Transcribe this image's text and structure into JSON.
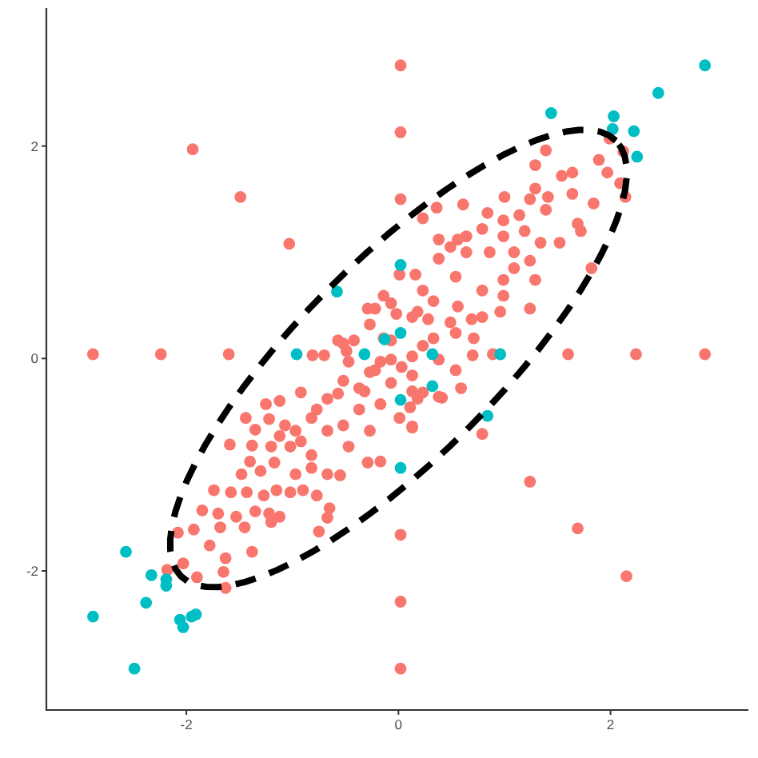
{
  "chart_data": {
    "type": "scatter",
    "xlim": [
      -3.32,
      3.3
    ],
    "ylim": [
      -3.31,
      3.3
    ],
    "xticks": [
      -2,
      0,
      2
    ],
    "yticks": [
      -2,
      0,
      2
    ],
    "marker": "circle",
    "series": [
      {
        "color": "#f8766d",
        "x": [
          0.02,
          0.02,
          0.02,
          -2.88,
          -2.24,
          -1.6,
          1.6,
          2.24,
          2.89,
          0.02,
          0.02,
          0.02,
          -1.94,
          -1.49,
          -1.03,
          1.24,
          1.69,
          2.15,
          -0.81,
          -0.7,
          -0.52,
          -0.42,
          -1.25,
          -1.12,
          -0.92,
          -0.67,
          -1.44,
          -1.22,
          -1.35,
          -1.59,
          -1.38,
          -1.12,
          -0.97,
          -0.82,
          -0.67,
          -0.52,
          -0.47,
          -0.27,
          -0.29,
          -0.17,
          -1.4,
          -1.48,
          -1.3,
          -1.17,
          -0.97,
          -0.82,
          -0.67,
          -0.55,
          -1.74,
          -1.58,
          -1.43,
          -1.27,
          -1.15,
          -1.02,
          -0.9,
          -0.77,
          -1.85,
          -1.7,
          -1.53,
          -1.35,
          -1.22,
          -1.12,
          -0.65,
          -0.67,
          -1.68,
          -1.45,
          -1.2,
          -0.75,
          -2.08,
          -1.93,
          -1.78,
          -1.63,
          -1.38,
          -2.03,
          -1.65,
          -1.9,
          0.13,
          0.01,
          -0.07,
          -0.27,
          -0.52,
          -0.17,
          -0.37,
          -0.22,
          -0.02,
          0.18,
          0.13,
          0.18,
          -0.27,
          -0.07,
          -0.17,
          -0.47,
          0.03,
          -0.37,
          -0.57,
          -0.77,
          -0.92,
          -0.82,
          -1.02,
          -1.07,
          -1.2,
          0.11,
          0.28,
          1.39,
          1.29,
          1.54,
          1.64,
          1.89,
          1.97,
          2.09,
          2.14,
          1.99,
          1.64,
          1.84,
          1.41,
          1.24,
          1.0,
          0.84,
          0.61,
          0.36,
          0.23,
          1.14,
          1.39,
          1.69,
          1.72,
          1.52,
          0.38,
          0.56,
          0.79,
          0.99,
          1.19,
          1.34,
          1.82,
          0.01,
          0.16,
          0.38,
          0.64,
          0.86,
          1.09,
          1.24,
          1.29,
          0.99,
          0.79,
          0.54,
          0.23,
          -0.14,
          1.24,
          0.96,
          0.79,
          0.56,
          0.33,
          0.13,
          -0.29,
          0.71,
          0.54,
          0.23,
          0.7,
          0.89,
          0.54,
          0.38,
          0.13,
          -0.22,
          -0.32,
          0.59,
          0.41,
          0.13,
          0.79,
          0.23,
          -0.14,
          -0.07,
          0.38,
          0.13,
          0.33,
          0.49,
          0.69,
          0.99,
          1.09,
          0.64,
          0.49,
          0.99,
          1.29,
          2.12,
          -0.07,
          -0.57,
          -0.49,
          -1.63,
          -2.18
        ],
        "values": [
          2.76,
          2.13,
          1.5,
          0.04,
          0.04,
          0.04,
          0.04,
          0.04,
          0.04,
          -1.66,
          -2.29,
          -2.92,
          1.97,
          1.52,
          1.08,
          -1.16,
          -1.6,
          -2.05,
          0.03,
          0.03,
          0.14,
          0.17,
          -0.43,
          -0.4,
          -0.32,
          -0.38,
          -0.56,
          -0.57,
          -0.67,
          -0.81,
          -0.82,
          -0.73,
          -0.68,
          -0.56,
          -0.68,
          -0.63,
          -0.83,
          -0.68,
          -0.98,
          -0.97,
          -0.97,
          -1.09,
          -1.06,
          -0.98,
          -1.09,
          -1.03,
          -1.09,
          -1.1,
          -1.24,
          -1.26,
          -1.26,
          -1.29,
          -1.24,
          -1.26,
          -1.24,
          -1.29,
          -1.43,
          -1.46,
          -1.49,
          -1.44,
          -1.46,
          -1.49,
          -1.41,
          -1.5,
          -1.59,
          -1.59,
          -1.54,
          -1.63,
          -1.64,
          -1.61,
          -1.76,
          -1.88,
          -1.82,
          -1.93,
          -2.01,
          -2.06,
          -0.64,
          -0.56,
          -0.23,
          -0.13,
          -0.21,
          -0.43,
          -0.48,
          0.47,
          0.42,
          0.44,
          0.02,
          -0.38,
          0.32,
          0.17,
          -0.03,
          -0.03,
          -0.08,
          -0.28,
          -0.33,
          -0.48,
          -0.78,
          -0.91,
          -0.83,
          -0.63,
          -0.83,
          -0.46,
          0.37,
          1.96,
          1.82,
          1.72,
          1.75,
          1.87,
          1.75,
          1.65,
          1.52,
          2.07,
          1.55,
          1.46,
          1.52,
          1.5,
          1.52,
          1.37,
          1.45,
          1.42,
          1.32,
          1.35,
          1.4,
          1.27,
          1.2,
          1.09,
          1.12,
          1.12,
          1.22,
          1.15,
          1.2,
          1.09,
          0.85,
          0.79,
          0.79,
          0.94,
          1.0,
          1.0,
          1.0,
          0.92,
          0.74,
          0.74,
          0.64,
          0.77,
          0.64,
          0.59,
          0.47,
          0.44,
          0.39,
          0.49,
          0.54,
          0.39,
          0.47,
          0.19,
          0.24,
          0.12,
          0.03,
          0.04,
          -0.11,
          -0.36,
          -0.31,
          -0.11,
          -0.31,
          -0.28,
          -0.37,
          -0.65,
          -0.71,
          -0.32,
          0.19,
          -0.01,
          -0.01,
          -0.16,
          0.19,
          0.34,
          0.37,
          0.59,
          0.85,
          1.15,
          1.05,
          1.3,
          1.6,
          1.95,
          0.52,
          0.17,
          0.07,
          -2.16,
          -1.99
        ]
      },
      {
        "color": "#00bfc4",
        "x": [
          2.89,
          2.45,
          1.44,
          2.03,
          2.02,
          2.22,
          2.25,
          0.02,
          0.02,
          0.32,
          0.96,
          -0.58,
          -0.96,
          -0.32,
          -0.13,
          0.32,
          0.02,
          0.84,
          0.02,
          -2.57,
          -2.33,
          -2.19,
          -2.19,
          -2.88,
          -2.38,
          -2.06,
          -2.03,
          -1.95,
          -1.91,
          -2.49
        ],
        "values": [
          2.76,
          2.5,
          2.31,
          2.28,
          2.16,
          2.14,
          1.9,
          0.88,
          0.24,
          0.04,
          0.04,
          0.63,
          0.04,
          0.04,
          0.18,
          -0.26,
          -0.39,
          -0.54,
          -1.03,
          -1.82,
          -2.04,
          -2.08,
          -2.14,
          -2.43,
          -2.3,
          -2.46,
          -2.53,
          -2.43,
          -2.41,
          -2.92
        ]
      }
    ]
  }
}
